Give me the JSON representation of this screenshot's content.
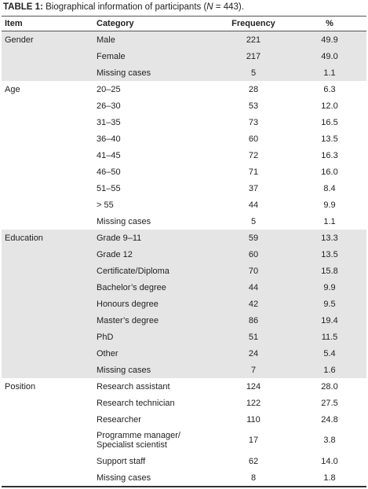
{
  "title": {
    "label": "TABLE 1:",
    "text_before": "Biographical information of participants (",
    "symbol": "N",
    "text_after": " = 443)."
  },
  "table": {
    "columns": [
      "Item",
      "Category",
      "Frequency",
      "%"
    ],
    "groups": [
      {
        "item": "Gender",
        "shaded": true,
        "rows": [
          [
            "Male",
            "221",
            "49.9"
          ],
          [
            "Female",
            "217",
            "49.0"
          ],
          [
            "Missing cases",
            "5",
            "1.1"
          ]
        ]
      },
      {
        "item": "Age",
        "shaded": false,
        "rows": [
          [
            "20–25",
            "28",
            "6.3"
          ],
          [
            "26–30",
            "53",
            "12.0"
          ],
          [
            "31–35",
            "73",
            "16.5"
          ],
          [
            "36–40",
            "60",
            "13.5"
          ],
          [
            "41–45",
            "72",
            "16.3"
          ],
          [
            "46–50",
            "71",
            "16.0"
          ],
          [
            "51–55",
            "37",
            "8.4"
          ],
          [
            "> 55",
            "44",
            "9.9"
          ],
          [
            "Missing cases",
            "5",
            "1.1"
          ]
        ]
      },
      {
        "item": "Education",
        "shaded": true,
        "rows": [
          [
            "Grade 9–11",
            "59",
            "13.3"
          ],
          [
            "Grade 12",
            "60",
            "13.5"
          ],
          [
            "Certificate/Diploma",
            "70",
            "15.8"
          ],
          [
            "Bachelor’s degree",
            "44",
            "9.9"
          ],
          [
            "Honours degree",
            "42",
            "9.5"
          ],
          [
            "Master’s degree",
            "86",
            "19.4"
          ],
          [
            "PhD",
            "51",
            "11.5"
          ],
          [
            "Other",
            "24",
            "5.4"
          ],
          [
            "Missing cases",
            "7",
            "1.6"
          ]
        ]
      },
      {
        "item": "Position",
        "shaded": false,
        "rows": [
          [
            "Research assistant",
            "124",
            "28.0"
          ],
          [
            "Research technician",
            "122",
            "27.5"
          ],
          [
            "Researcher",
            "110",
            "24.8"
          ],
          [
            [
              "Programme manager/",
              "Specialist scientist"
            ],
            "17",
            "3.8"
          ],
          [
            "Support staff",
            "62",
            "14.0"
          ],
          [
            "Missing cases",
            "8",
            "1.8"
          ]
        ]
      }
    ]
  }
}
